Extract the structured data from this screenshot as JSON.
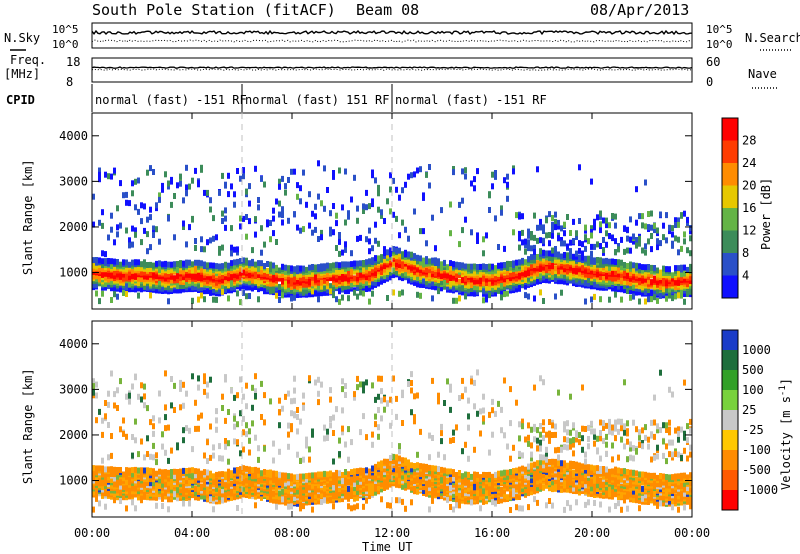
{
  "header": {
    "station": "South Pole Station (fitACF)",
    "beam": "Beam 08",
    "date": "08/Apr/2013"
  },
  "top_panels": {
    "nsky_label": "N.Sky",
    "nsky_ticks": [
      "10^5",
      "10^0"
    ],
    "nsearch_label": "N.Search",
    "nsearch_ticks": [
      "10^5",
      "10^0"
    ],
    "freq_label": "Freq.",
    "freq_unit": "[MHz]",
    "freq_ticks": [
      "18",
      "8"
    ],
    "nave_label": "Nave",
    "nave_ticks": [
      "60",
      "0"
    ],
    "cpid_label": "CPID",
    "cpid_segments": [
      {
        "label": "normal (fast) -151 RF",
        "start": 0,
        "end": 6
      },
      {
        "label": "normal (fast) 151 RF",
        "start": 6,
        "end": 12
      },
      {
        "label": "normal (fast) -151 RF",
        "start": 12,
        "end": 24
      }
    ]
  },
  "chart_data": [
    {
      "type": "heatmap",
      "panel": "power",
      "ylabel": "Slant Range [km]",
      "y_ticks": [
        "1000",
        "2000",
        "3000",
        "4000"
      ],
      "ylim": [
        200,
        4500
      ],
      "colorbar_label": "Power [dB]",
      "colorbar_ticks": [
        "4",
        "8",
        "12",
        "16",
        "20",
        "24",
        "28"
      ],
      "colorbar_colors": [
        "#1010ff",
        "#2a50c8",
        "#3c8c5a",
        "#64b446",
        "#e6c800",
        "#ff8c00",
        "#ff3c00",
        "#ff0000"
      ],
      "band_profile": {
        "x_hours": [
          0,
          1,
          2,
          3,
          4,
          5,
          6,
          7,
          8,
          9,
          10,
          11,
          12,
          13,
          14,
          15,
          16,
          17,
          18,
          19,
          20,
          21,
          22,
          23,
          24
        ],
        "center_km": [
          1000,
          950,
          950,
          900,
          950,
          850,
          1000,
          900,
          800,
          850,
          900,
          950,
          1250,
          1050,
          950,
          850,
          850,
          950,
          1150,
          1100,
          1000,
          950,
          850,
          800,
          850
        ]
      }
    },
    {
      "type": "heatmap",
      "panel": "velocity",
      "ylabel": "Slant Range [km]",
      "y_ticks": [
        "1000",
        "2000",
        "3000",
        "4000"
      ],
      "ylim": [
        200,
        4500
      ],
      "colorbar_label": "Velocity [m s^-1]",
      "colorbar_ticks": [
        "1000",
        "500",
        "100",
        "25",
        "-25",
        "-100",
        "-500",
        "-1000"
      ],
      "colorbar_colors": [
        "#1a3cc8",
        "#1e6e3c",
        "#32a028",
        "#78d23c",
        "#c8c8c8",
        "#ffc800",
        "#ff8c00",
        "#ff5a00",
        "#ff0000"
      ]
    }
  ],
  "x_axis": {
    "label": "Time UT",
    "ticks": [
      "00:00",
      "04:00",
      "08:00",
      "12:00",
      "16:00",
      "20:00",
      "00:00"
    ]
  }
}
